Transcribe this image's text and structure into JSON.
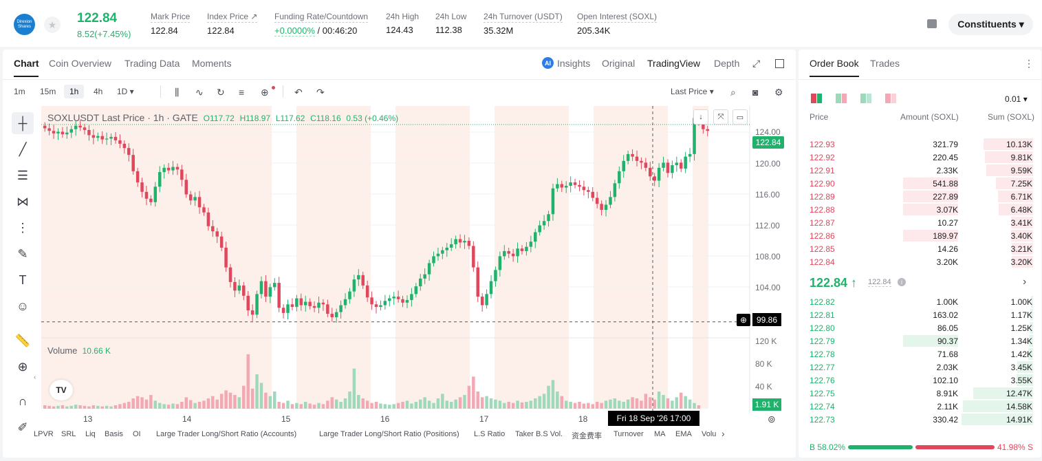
{
  "header": {
    "logo_text_1": "Direxion",
    "logo_text_2": "Shares",
    "last_price": "122.84",
    "change": "8.52(+7.45%)",
    "stats": [
      {
        "label": "Mark Price",
        "value": "122.84"
      },
      {
        "label": "Index Price ↗",
        "value": "122.84"
      },
      {
        "label": "Funding Rate/Countdown",
        "value_green": "+0.0000%",
        "value": " / 00:46:20"
      },
      {
        "label": "24h High",
        "value": "124.43"
      },
      {
        "label": "24h Low",
        "value": "112.38"
      },
      {
        "label": "24h Turnover (USDT)",
        "value": "35.32M"
      },
      {
        "label": "Open Interest (SOXL)",
        "value": "205.34K"
      }
    ],
    "constituents": "Constituents ▾"
  },
  "chart_tabs": [
    "Chart",
    "Coin Overview",
    "Trading Data",
    "Moments"
  ],
  "view_tabs": {
    "ai": "AI",
    "insights": "Insights",
    "original": "Original",
    "tradingview": "TradingView",
    "depth": "Depth"
  },
  "timeframes": [
    "1m",
    "15m",
    "1h",
    "4h",
    "1D ▾"
  ],
  "price_type": "Last Price ▾",
  "ohlc": {
    "title": "SOXLUSDT Last Price · 1h · GATE",
    "o": "O117.72",
    "h": "H118.97",
    "l": "L117.62",
    "c": "C118.16",
    "chg": "0.53 (+0.46%)"
  },
  "volume": {
    "label": "Volume",
    "value": "10.66 K"
  },
  "price_ticks": [
    "124.00",
    "120.00",
    "116.00",
    "112.00",
    "108.00",
    "104.00"
  ],
  "vol_ticks": [
    "120 K",
    "80 K",
    "40 K"
  ],
  "price_tag": "122.84",
  "cross_tag": "99.86",
  "vol_tag": "1.91 K",
  "x_ticks": [
    "13",
    "14",
    "15",
    "16",
    "17",
    "18"
  ],
  "time_tag": "Fri 18 Sep '26   17:00",
  "indicators": [
    "LPVR",
    "SRL",
    "Liq",
    "Basis",
    "OI",
    "Large Trader Long/Short Ratio (Accounts)",
    "Large Trader Long/Short Ratio (Positions)",
    "L.S Ratio",
    "Taker B.S Vol.",
    "资金费率",
    "Turnover",
    "MA",
    "EMA",
    "Volu"
  ],
  "orderbook": {
    "tabs": [
      "Order Book",
      "Trades"
    ],
    "precision": "0.01 ▾",
    "headers": [
      "Price",
      "Amount (SOXL)",
      "Sum (SOXL)"
    ],
    "asks": [
      {
        "price": "122.93",
        "amount": "321.79",
        "sum": "10.13K",
        "sum_frac": 0.68,
        "amt_frac": 0
      },
      {
        "price": "122.92",
        "amount": "220.45",
        "sum": "9.81K",
        "sum_frac": 0.66,
        "amt_frac": 0
      },
      {
        "price": "122.91",
        "amount": "2.33K",
        "sum": "9.59K",
        "sum_frac": 0.64,
        "amt_frac": 0
      },
      {
        "price": "122.90",
        "amount": "541.88",
        "sum": "7.25K",
        "sum_frac": 0.51,
        "amt_frac": 0.69
      },
      {
        "price": "122.89",
        "amount": "227.89",
        "sum": "6.71K",
        "sum_frac": 0.48,
        "amt_frac": 0.69
      },
      {
        "price": "122.88",
        "amount": "3.07K",
        "sum": "6.48K",
        "sum_frac": 0.47,
        "amt_frac": 0.69
      },
      {
        "price": "122.87",
        "amount": "10.27",
        "sum": "3.41K",
        "sum_frac": 0.3,
        "amt_frac": 0
      },
      {
        "price": "122.86",
        "amount": "189.97",
        "sum": "3.40K",
        "sum_frac": 0.3,
        "amt_frac": 0.69
      },
      {
        "price": "122.85",
        "amount": "14.26",
        "sum": "3.21K",
        "sum_frac": 0.29,
        "amt_frac": 0
      },
      {
        "price": "122.84",
        "amount": "3.20K",
        "sum": "3.20K",
        "sum_frac": 0.29,
        "amt_frac": 0
      }
    ],
    "mid_price": "122.84 ↑",
    "mid_sub": "122.84",
    "bids": [
      {
        "price": "122.82",
        "amount": "1.00K",
        "sum": "1.00K",
        "sum_frac": 0.03
      },
      {
        "price": "122.81",
        "amount": "163.02",
        "sum": "1.17K",
        "sum_frac": 0.04
      },
      {
        "price": "122.80",
        "amount": "86.05",
        "sum": "1.25K",
        "sum_frac": 0.05
      },
      {
        "price": "122.79",
        "amount": "90.37",
        "sum": "1.34K",
        "sum_frac": 0.06,
        "amt_frac": 0.69
      },
      {
        "price": "122.78",
        "amount": "71.68",
        "sum": "1.42K",
        "sum_frac": 0.07
      },
      {
        "price": "122.77",
        "amount": "2.03K",
        "sum": "3.45K",
        "sum_frac": 0.22
      },
      {
        "price": "122.76",
        "amount": "102.10",
        "sum": "3.55K",
        "sum_frac": 0.23
      },
      {
        "price": "122.75",
        "amount": "8.91K",
        "sum": "12.47K",
        "sum_frac": 0.82
      },
      {
        "price": "122.74",
        "amount": "2.11K",
        "sum": "14.58K",
        "sum_frac": 0.96
      },
      {
        "price": "122.73",
        "amount": "330.42",
        "sum": "14.91K",
        "sum_frac": 0.98
      }
    ],
    "buy_ratio": "B 58.02%",
    "sell_ratio": "41.98% S"
  },
  "colors": {
    "green": "#20b26c",
    "red": "#e0475c",
    "session_shade": "#fdf0ea"
  },
  "chart_data": {
    "type": "candlestick",
    "interval": "1h",
    "ylim": [
      98,
      125
    ],
    "closes": [
      122.4,
      122.1,
      121.8,
      122,
      121.7,
      121.9,
      122.3,
      122.7,
      122.5,
      122.2,
      121.6,
      121.3,
      121.5,
      121.1,
      121.2,
      121.4,
      121,
      120.6,
      120.1,
      119.3,
      117.4,
      116.1,
      115,
      114.2,
      113.8,
      115.6,
      117.3,
      117.8,
      117.5,
      117.9,
      117.6,
      116.4,
      114.7,
      114,
      114.4,
      113.2,
      112.6,
      111,
      110.4,
      109.8,
      108.5,
      106.2,
      104.5,
      103.5,
      104.1,
      102.9,
      101.2,
      100.7,
      103.1,
      104.6,
      102.8,
      103.9,
      104.4,
      101.5,
      100.9,
      101.9,
      101.6,
      102.6,
      101.8,
      102.2,
      101.7,
      101.5,
      102.1,
      101.9,
      100.8,
      100.4,
      101,
      101.8,
      102.5,
      103.4,
      104.8,
      105.3,
      104.1,
      102.7,
      101.9,
      101.6,
      101.8,
      102.3,
      102.6,
      102.8,
      102.5,
      102.1,
      102.4,
      103.1,
      104,
      104.9,
      105.4,
      106.7,
      107.5,
      107.8,
      108.2,
      108.5,
      108.9,
      109.5,
      109.1,
      109.3,
      108.7,
      106.2,
      102.8,
      101.8,
      103.1,
      104.6,
      105.9,
      107.5,
      108.1,
      107.8,
      107.5,
      108.4,
      108.1,
      108.6,
      109.2,
      110.3,
      111.1,
      111.6,
      112.4,
      115.4,
      115.9,
      115.5,
      115.7,
      116.1,
      115.8,
      115.6,
      115.2,
      115,
      114.3,
      113.6,
      112.9,
      113.5,
      114.4,
      116,
      117.4,
      118.6,
      119.4,
      119.1,
      118.6,
      118.4,
      117.8,
      116.8,
      116.3,
      117.8,
      118.4,
      117.2,
      118.1,
      118.4,
      117.7,
      119.1,
      119.4,
      123.6,
      123.1,
      122.3,
      122.1
    ],
    "volumes": [
      6,
      5,
      4,
      5,
      6,
      4,
      5,
      7,
      6,
      5,
      4,
      6,
      5,
      4,
      5,
      4,
      6,
      8,
      10,
      12,
      18,
      22,
      20,
      16,
      24,
      14,
      10,
      8,
      7,
      9,
      8,
      12,
      20,
      15,
      10,
      12,
      14,
      18,
      22,
      16,
      26,
      32,
      28,
      24,
      20,
      40,
      95,
      35,
      60,
      45,
      28,
      22,
      30,
      12,
      10,
      14,
      8,
      10,
      8,
      12,
      9,
      7,
      10,
      8,
      14,
      20,
      16,
      12,
      18,
      30,
      70,
      24,
      18,
      14,
      10,
      12,
      9,
      8,
      7,
      8,
      10,
      12,
      14,
      9,
      12,
      16,
      20,
      14,
      10,
      18,
      26,
      14,
      12,
      16,
      20,
      24,
      40,
      56,
      30,
      20,
      22,
      18,
      16,
      14,
      10,
      12,
      10,
      14,
      11,
      12,
      14,
      18,
      22,
      26,
      40,
      50,
      30,
      22,
      14,
      12,
      10,
      12,
      9,
      10,
      8,
      12,
      10,
      14,
      16,
      18,
      14,
      12,
      16,
      20,
      18,
      14,
      26,
      20,
      16,
      30,
      24,
      18,
      14,
      20,
      28,
      22,
      16,
      10,
      6
    ],
    "xlabels": [
      "13",
      "14",
      "15",
      "16",
      "17",
      "18"
    ]
  }
}
